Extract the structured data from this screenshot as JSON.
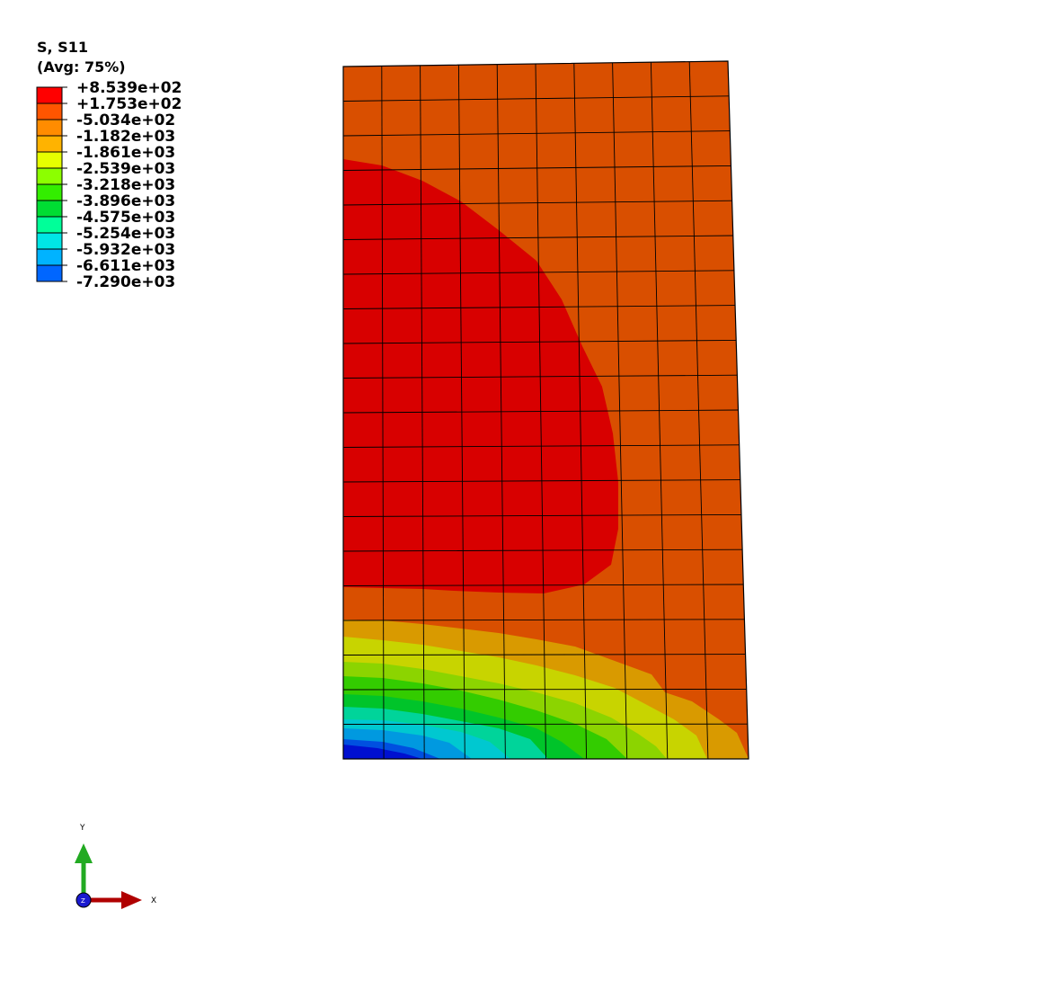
{
  "legend": {
    "title_line1": "S, S11",
    "title_line2": "(Avg: 75%)",
    "levels": [
      {
        "label": "+8.539e+02",
        "color": "#ff0000"
      },
      {
        "label": "+1.753e+02",
        "color": "#ff5500"
      },
      {
        "label": "-5.034e+02",
        "color": "#ff8c00"
      },
      {
        "label": "-1.182e+03",
        "color": "#ffb300"
      },
      {
        "label": "-1.861e+03",
        "color": "#e6ff00"
      },
      {
        "label": "-2.539e+03",
        "color": "#8cff00"
      },
      {
        "label": "-3.218e+03",
        "color": "#33ee00"
      },
      {
        "label": "-3.896e+03",
        "color": "#00dd33"
      },
      {
        "label": "-4.575e+03",
        "color": "#00ff99"
      },
      {
        "label": "-5.254e+03",
        "color": "#00e6e6"
      },
      {
        "label": "-5.932e+03",
        "color": "#00b3ff"
      },
      {
        "label": "-6.611e+03",
        "color": "#0066ff"
      },
      {
        "label": "-7.290e+03",
        "color": "#0000ff"
      }
    ]
  },
  "triad": {
    "x_label": "X",
    "y_label": "Y",
    "z_label": "Z",
    "x_color": "#b00000",
    "y_color": "#22aa22",
    "z_color": "#1a1ad0"
  },
  "contour_colors": {
    "red": "#d80000",
    "orange_red": "#d94f00",
    "orange": "#e07800",
    "amber": "#d99a00",
    "yellow": "#c8d400",
    "yellow_green": "#8cd400",
    "green": "#33cc00",
    "green2": "#00c42a",
    "teal": "#00d49a",
    "cyan": "#00c8d0",
    "sky": "#0099e0",
    "blue": "#0050e0",
    "dark_blue": "#0010d0"
  }
}
